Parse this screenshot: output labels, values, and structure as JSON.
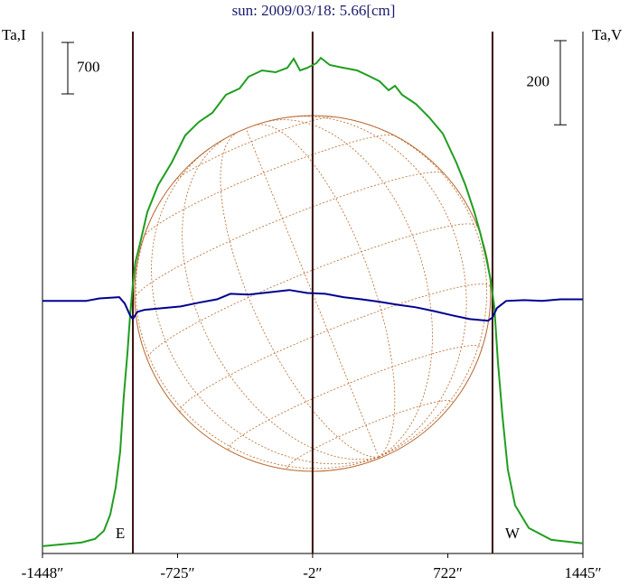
{
  "chart_data": {
    "type": "line",
    "title": "sun: 2009/03/18: 5.66[cm]",
    "ylabel": "Ta,I",
    "y2label": "Ta,V",
    "xlim": [
      -1448,
      1445
    ],
    "xticks": [
      {
        "value": -1448,
        "label": "-1448″"
      },
      {
        "value": -725,
        "label": "-725″"
      },
      {
        "value": -2,
        "label": "-2″"
      },
      {
        "value": 722,
        "label": "722″"
      },
      {
        "value": 1445,
        "label": "1445″"
      }
    ],
    "ylim": [
      -100,
      7000
    ],
    "y2lim": [
      -600,
      640
    ],
    "scale_bars": [
      {
        "value": 700,
        "axis": "y"
      },
      {
        "value": 200,
        "axis": "y2"
      }
    ],
    "vlines": [
      {
        "x": -964,
        "label": "E"
      },
      {
        "x": -2
      },
      {
        "x": 961,
        "label": "W"
      }
    ],
    "vline_color": "#3b0f0f",
    "disk": {
      "x": -2,
      "radius": 953,
      "color": "#b8652a"
    },
    "series": [
      {
        "color": "#1f9e1f",
        "x": [
          -1448,
          -1337,
          -1240,
          -1167,
          -1119,
          -1085,
          -1056,
          -1032,
          -1013,
          -993,
          -979,
          -964,
          -950,
          -926,
          -887,
          -829,
          -756,
          -684,
          -611,
          -539,
          -466,
          -393,
          -345,
          -273,
          -200,
          -137,
          -103,
          -69,
          -30,
          18,
          42,
          90,
          163,
          236,
          308,
          356,
          405,
          439,
          477,
          550,
          622,
          695,
          767,
          816,
          864,
          898,
          927,
          951,
          971,
          990,
          1014,
          1043,
          1082,
          1155,
          1276,
          1445
        ],
        "values": [
          0,
          25,
          49,
          98,
          209,
          430,
          798,
          1289,
          2026,
          2640,
          3131,
          3561,
          3868,
          4114,
          4544,
          4912,
          5219,
          5587,
          5771,
          5894,
          6140,
          6226,
          6386,
          6472,
          6447,
          6508,
          6631,
          6472,
          6508,
          6570,
          6643,
          6545,
          6508,
          6472,
          6386,
          6324,
          6201,
          6263,
          6140,
          6017,
          5833,
          5612,
          5219,
          4912,
          4544,
          4237,
          3930,
          3623,
          3254,
          2517,
          1780,
          1044,
          553,
          246,
          86,
          37
        ]
      },
      {
        "color": "#000090",
        "axis": "y2",
        "x": [
          -1448,
          -1216,
          -1143,
          -1037,
          -1008,
          -979,
          -964,
          -940,
          -901,
          -805,
          -708,
          -611,
          -514,
          -442,
          -345,
          -224,
          -127,
          -30,
          66,
          163,
          260,
          357,
          453,
          550,
          647,
          744,
          840,
          937,
          961,
          985,
          1034,
          1131,
          1227,
          1324,
          1445
        ],
        "values": [
          0,
          0,
          6,
          9,
          -6,
          -34,
          -43,
          -26,
          -21,
          -17,
          -13,
          -4,
          4,
          17,
          15,
          21,
          26,
          19,
          17,
          9,
          4,
          -2,
          -9,
          -15,
          -24,
          -34,
          -43,
          -47,
          -39,
          -17,
          0,
          2,
          0,
          4,
          4
        ]
      }
    ]
  }
}
